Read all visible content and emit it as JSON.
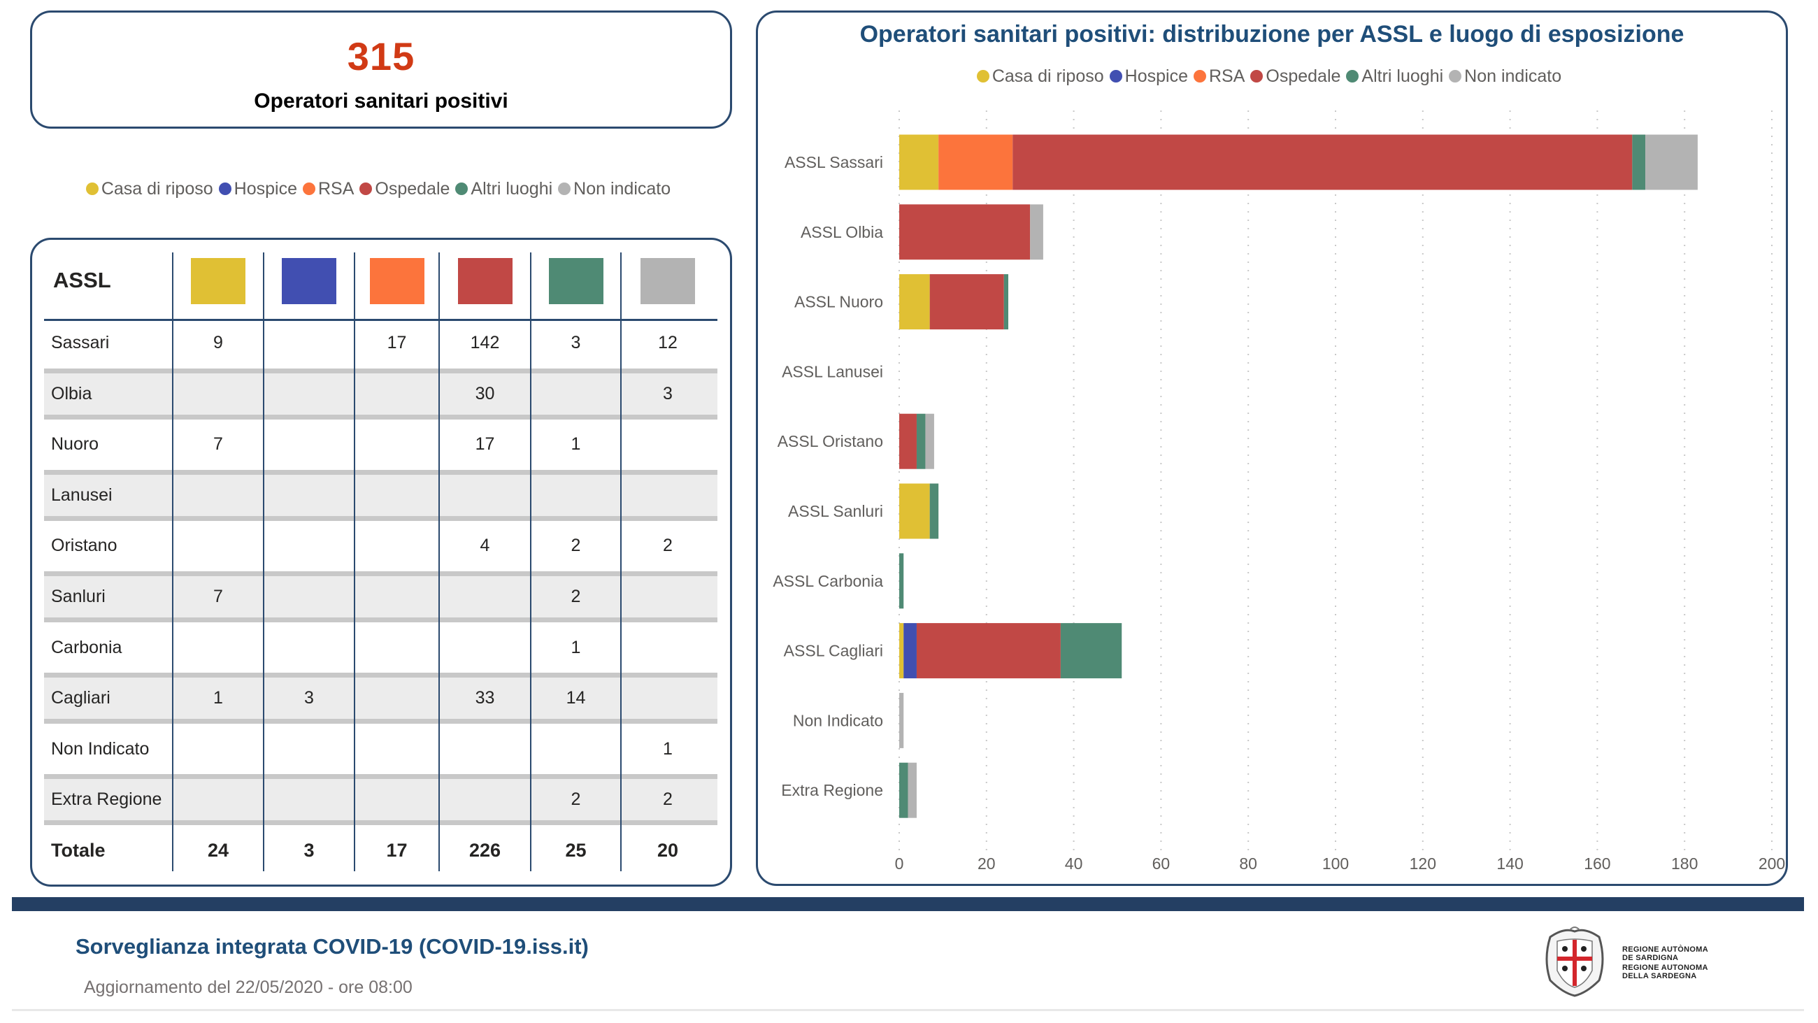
{
  "kpi": {
    "value": "315",
    "label": "Operatori sanitari positivi",
    "value_color": "#d13a15"
  },
  "categories_legend": [
    {
      "label": "Casa di riposo",
      "color": "#e0c034"
    },
    {
      "label": "Hospice",
      "color": "#414fb1"
    },
    {
      "label": "RSA",
      "color": "#fc743c"
    },
    {
      "label": "Ospedale",
      "color": "#c14845"
    },
    {
      "label": "Altri luoghi",
      "color": "#4f8a74"
    },
    {
      "label": "Non indicato",
      "color": "#b3b3b3"
    }
  ],
  "table": {
    "header_label": "ASSL",
    "rows": [
      {
        "name": "Sassari",
        "values": [
          "9",
          "",
          "17",
          "142",
          "3",
          "12"
        ]
      },
      {
        "name": "Olbia",
        "values": [
          "",
          "",
          "",
          "30",
          "",
          "3"
        ]
      },
      {
        "name": "Nuoro",
        "values": [
          "7",
          "",
          "",
          "17",
          "1",
          ""
        ]
      },
      {
        "name": "Lanusei",
        "values": [
          "",
          "",
          "",
          "",
          "",
          ""
        ]
      },
      {
        "name": "Oristano",
        "values": [
          "",
          "",
          "",
          "4",
          "2",
          "2"
        ]
      },
      {
        "name": "Sanluri",
        "values": [
          "7",
          "",
          "",
          "",
          "2",
          ""
        ]
      },
      {
        "name": "Carbonia",
        "values": [
          "",
          "",
          "",
          "",
          "1",
          ""
        ]
      },
      {
        "name": "Cagliari",
        "values": [
          "1",
          "3",
          "",
          "33",
          "14",
          ""
        ]
      },
      {
        "name": "Non Indicato",
        "values": [
          "",
          "",
          "",
          "",
          "",
          "1"
        ]
      },
      {
        "name": "Extra Regione",
        "values": [
          "",
          "",
          "",
          "",
          "2",
          "2"
        ]
      }
    ],
    "total": {
      "name": "Totale",
      "values": [
        "24",
        "3",
        "17",
        "226",
        "25",
        "20"
      ]
    }
  },
  "chart_data": {
    "type": "bar",
    "orientation": "horizontal",
    "stacked": true,
    "title": "Operatori sanitari positivi: distribuzione per ASSL e luogo di esposizione",
    "xlabel": "",
    "ylabel": "",
    "xlim": [
      0,
      200
    ],
    "xticks": [
      0,
      20,
      40,
      60,
      80,
      100,
      120,
      140,
      160,
      180,
      200
    ],
    "grid": true,
    "legend_position": "top-center",
    "categories": [
      "ASSL Sassari",
      "ASSL Olbia",
      "ASSL Nuoro",
      "ASSL Lanusei",
      "ASSL Oristano",
      "ASSL Sanluri",
      "ASSL Carbonia",
      "ASSL Cagliari",
      "Non Indicato",
      "Extra Regione"
    ],
    "series": [
      {
        "name": "Casa di riposo",
        "color": "#e0c034",
        "values": [
          9,
          0,
          7,
          0,
          0,
          7,
          0,
          1,
          0,
          0
        ]
      },
      {
        "name": "Hospice",
        "color": "#414fb1",
        "values": [
          0,
          0,
          0,
          0,
          0,
          0,
          0,
          3,
          0,
          0
        ]
      },
      {
        "name": "RSA",
        "color": "#fc743c",
        "values": [
          17,
          0,
          0,
          0,
          0,
          0,
          0,
          0,
          0,
          0
        ]
      },
      {
        "name": "Ospedale",
        "color": "#c14845",
        "values": [
          142,
          30,
          17,
          0,
          4,
          0,
          0,
          33,
          0,
          0
        ]
      },
      {
        "name": "Altri luoghi",
        "color": "#4f8a74",
        "values": [
          3,
          0,
          1,
          0,
          2,
          2,
          1,
          14,
          0,
          2
        ]
      },
      {
        "name": "Non indicato",
        "color": "#b3b3b3",
        "values": [
          12,
          3,
          0,
          0,
          2,
          0,
          0,
          0,
          1,
          2
        ]
      }
    ]
  },
  "footer": {
    "title": "Sorveglianza integrata COVID-19 (COVID-19.iss.it)",
    "update": "Aggiornamento del 22/05/2020 - ore 08:00",
    "logo_lines": [
      "REGIONE AUTÒNOMA",
      "DE SARDIGNA",
      "REGIONE AUTONOMA",
      "DELLA SARDEGNA"
    ]
  }
}
